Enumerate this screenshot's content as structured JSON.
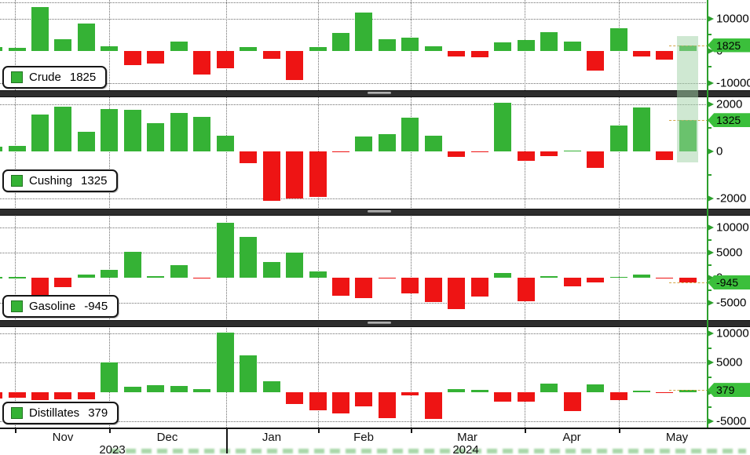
{
  "legend": [
    {
      "label": "Crude",
      "value": "1825"
    },
    {
      "label": "Cushing",
      "value": "1325"
    },
    {
      "label": "Gasoline",
      "value": "-945"
    },
    {
      "label": "Distillates",
      "value": "379"
    }
  ],
  "colors": {
    "positive": "#35b235",
    "negative": "#ee1414",
    "badge": "#3bbf3b",
    "axis": "#2da02d",
    "separator": "#2d2d2d",
    "highlight": "rgba(160,210,165,0.5)"
  },
  "chart_data": {
    "type": "bar",
    "x_axis": {
      "months": [
        "Nov",
        "Dec",
        "Jan",
        "Feb",
        "Mar",
        "Apr",
        "May"
      ],
      "years": [
        "2023",
        "2024"
      ]
    },
    "legend_position": "left-inside-each-panel",
    "grid": "dotted",
    "periods": 31,
    "highlight": {
      "bar_index": 30,
      "applies_to_panels": [
        0,
        1
      ]
    },
    "panels": [
      {
        "name": "Crude",
        "badge": "1825",
        "badge_value": 1825,
        "y_range": [
          -12200,
          15850
        ],
        "gridline_values": [
          15000,
          10000,
          -10000
        ],
        "axis_tick_values": [
          10000,
          0,
          -10000
        ],
        "axis_tick_labels": [
          "10000",
          "0",
          "-10000"
        ],
        "minor_tick_values": [
          5000,
          0,
          -5000
        ],
        "values": [
          1200,
          850,
          13700,
          3550,
          8450,
          1500,
          -4400,
          -3850,
          2900,
          -7300,
          -5400,
          1250,
          -2400,
          -9000,
          1250,
          5500,
          12000,
          3550,
          4100,
          1450,
          -1600,
          -1850,
          2650,
          3300,
          5750,
          2900,
          -6100,
          7150,
          -1600,
          -2650,
          1825
        ]
      },
      {
        "name": "Cushing",
        "badge": "1325",
        "badge_value": 1325,
        "y_range": [
          -2450,
          2370
        ],
        "gridline_values": [
          2000,
          -2000
        ],
        "axis_tick_values": [
          2000,
          0,
          -2000
        ],
        "axis_tick_labels": [
          "2000",
          "0",
          "-2000"
        ],
        "minor_tick_values": [
          1000,
          -1000
        ],
        "values": [
          190,
          215,
          1560,
          1895,
          830,
          1815,
          1780,
          1190,
          1635,
          1470,
          660,
          -510,
          -2115,
          -2030,
          -1950,
          -50,
          640,
          720,
          1425,
          660,
          -235,
          -40,
          2080,
          -420,
          -210,
          30,
          -700,
          1090,
          1880,
          -380,
          1325
        ]
      },
      {
        "name": "Gasoline",
        "badge": "-945",
        "badge_value": -945,
        "y_range": [
          -8440,
          12660
        ],
        "gridline_values": [
          10000,
          5000,
          -5000
        ],
        "axis_tick_values": [
          10000,
          5000,
          0,
          -5000
        ],
        "axis_tick_labels": [
          "10000",
          "5000",
          "0",
          "-5000"
        ],
        "minor_tick_values": [
          7500,
          2500,
          -2500
        ],
        "values": [
          100,
          100,
          -3400,
          -1900,
          700,
          1600,
          5200,
          300,
          2500,
          -200,
          10900,
          8100,
          3100,
          5000,
          1300,
          -3600,
          -4000,
          -150,
          -3100,
          -4800,
          -6300,
          -3700,
          930,
          -4650,
          350,
          -1650,
          -880,
          150,
          620,
          -50,
          -945
        ]
      },
      {
        "name": "Distillates",
        "badge": "379",
        "badge_value": 379,
        "y_range": [
          -6000,
          11330
        ],
        "gridline_values": [
          10000,
          5000,
          -5000
        ],
        "axis_tick_values": [
          10000,
          5000,
          0,
          -5000
        ],
        "axis_tick_labels": [
          "10000",
          "5000",
          "0",
          "-5000"
        ],
        "minor_tick_values": [
          7500,
          2500,
          -2500
        ],
        "values": [
          -1100,
          -1000,
          -1350,
          -1200,
          -1200,
          5000,
          900,
          1250,
          1100,
          550,
          10100,
          6300,
          1850,
          -2000,
          -3100,
          -3650,
          -2450,
          -4350,
          -500,
          -4550,
          550,
          400,
          -1650,
          -1650,
          1400,
          -3250,
          1350,
          -1350,
          250,
          -50,
          379
        ]
      }
    ]
  }
}
